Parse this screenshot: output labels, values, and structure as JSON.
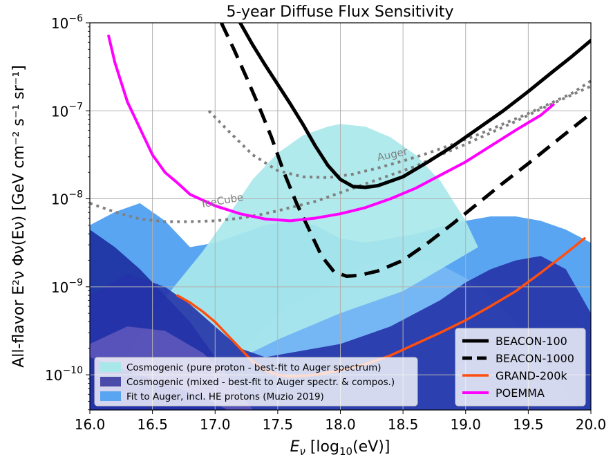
{
  "chart_data": {
    "type": "line",
    "title": "5-year Diffuse Flux Sensitivity",
    "xlabel_main": "E",
    "xlabel_sub": "ν",
    "xlabel_unit": " [log",
    "xlabel_unit_sub": "10",
    "xlabel_unit_end": "(eV)]",
    "ylabel": "All-flavor E²ν Φν(Eν) [GeV cm⁻² s⁻¹ sr⁻¹]",
    "xlim": [
      16.0,
      20.0
    ],
    "ylim_log10": [
      -10.4,
      -6
    ],
    "log_y": true,
    "grid": true,
    "xticks": [
      "16.0",
      "16.5",
      "17.0",
      "17.5",
      "18.0",
      "18.5",
      "19.0",
      "19.5",
      "20.0"
    ],
    "yticks": [
      {
        "base": "10",
        "exp": "−6",
        "log": -6
      },
      {
        "base": "10",
        "exp": "−7",
        "log": -7
      },
      {
        "base": "10",
        "exp": "−8",
        "log": -8
      },
      {
        "base": "10",
        "exp": "−9",
        "log": -9
      },
      {
        "base": "10",
        "exp": "−10",
        "log": -10
      }
    ],
    "bands": [
      {
        "name": "Fit to Auger, incl. HE protons (Muzio 2019)",
        "color": "#5aa5f2",
        "opacity": 1.0,
        "upper": [
          [
            16.0,
            -8.3
          ],
          [
            16.2,
            -8.15
          ],
          [
            16.4,
            -8.05
          ],
          [
            16.6,
            -8.25
          ],
          [
            16.8,
            -8.55
          ],
          [
            17.0,
            -8.5
          ],
          [
            17.2,
            -8.4
          ],
          [
            17.4,
            -8.3
          ],
          [
            17.6,
            -8.25
          ],
          [
            17.8,
            -8.3
          ],
          [
            18.0,
            -8.45
          ],
          [
            18.2,
            -8.5
          ],
          [
            18.4,
            -8.45
          ],
          [
            18.6,
            -8.4
          ],
          [
            18.8,
            -8.32
          ],
          [
            19.0,
            -8.25
          ],
          [
            19.2,
            -8.2
          ],
          [
            19.4,
            -8.2
          ],
          [
            19.6,
            -8.25
          ],
          [
            19.8,
            -8.35
          ],
          [
            20.0,
            -8.5
          ]
        ],
        "lower": [
          [
            16.0,
            -10.4
          ],
          [
            20.0,
            -10.4
          ]
        ]
      },
      {
        "name": "Fit to Auger, incl. HE protons (Muzio 2019) light",
        "color": "#75b6f5",
        "opacity": 1.0,
        "upper": [
          [
            17.0,
            -9.9
          ],
          [
            17.3,
            -9.6
          ],
          [
            17.6,
            -9.2
          ],
          [
            17.9,
            -9.0
          ],
          [
            18.2,
            -8.75
          ],
          [
            18.5,
            -8.65
          ],
          [
            18.8,
            -8.75
          ],
          [
            19.0,
            -8.9
          ],
          [
            19.2,
            -9.1
          ],
          [
            19.4,
            -9.4
          ],
          [
            19.6,
            -9.8
          ],
          [
            19.8,
            -10.2
          ],
          [
            19.9,
            -10.4
          ]
        ],
        "lower": [
          [
            17.0,
            -10.4
          ],
          [
            19.9,
            -10.4
          ]
        ]
      },
      {
        "name": "Cosmogenic (pure proton - best-fit to Auger spectrum)",
        "color": "#a9e8ea",
        "opacity": 0.92,
        "upper": [
          [
            16.3,
            -9.8
          ],
          [
            16.5,
            -9.3
          ],
          [
            16.7,
            -8.95
          ],
          [
            16.9,
            -8.6
          ],
          [
            17.1,
            -8.2
          ],
          [
            17.3,
            -7.78
          ],
          [
            17.5,
            -7.48
          ],
          [
            17.7,
            -7.28
          ],
          [
            17.9,
            -7.18
          ],
          [
            18.0,
            -7.15
          ],
          [
            18.2,
            -7.18
          ],
          [
            18.4,
            -7.3
          ],
          [
            18.6,
            -7.5
          ],
          [
            18.8,
            -7.8
          ],
          [
            19.0,
            -8.25
          ],
          [
            19.1,
            -8.55
          ]
        ],
        "lower": [
          [
            16.3,
            -9.8
          ],
          [
            17.0,
            -9.95
          ],
          [
            17.5,
            -9.6
          ],
          [
            18.0,
            -9.3
          ],
          [
            18.5,
            -9.05
          ],
          [
            19.1,
            -8.55
          ]
        ]
      },
      {
        "name": "Cosmogenic (mixed - best-fit to Auger spectr. & compos.)",
        "color": "#1c2ea0",
        "opacity": 0.9,
        "upper": [
          [
            16.0,
            -8.35
          ],
          [
            16.2,
            -8.55
          ],
          [
            16.4,
            -8.8
          ],
          [
            16.6,
            -9.1
          ],
          [
            16.8,
            -9.4
          ],
          [
            17.0,
            -9.8
          ],
          [
            17.1,
            -10.05
          ],
          [
            17.2,
            -10.3
          ],
          [
            17.3,
            -10.4
          ]
        ],
        "lower": [
          [
            16.0,
            -10.4
          ],
          [
            17.3,
            -10.4
          ]
        ]
      },
      {
        "name": "Cosmogenic (mixed) inner",
        "color": "#2533a8",
        "opacity": 0.9,
        "upper": [
          [
            16.0,
            -9.1
          ],
          [
            16.3,
            -8.85
          ],
          [
            16.6,
            -9.0
          ],
          [
            16.8,
            -9.2
          ],
          [
            17.0,
            -9.45
          ],
          [
            17.2,
            -9.7
          ],
          [
            17.4,
            -9.8
          ],
          [
            17.6,
            -9.75
          ],
          [
            17.8,
            -9.7
          ],
          [
            18.0,
            -9.65
          ],
          [
            18.2,
            -9.55
          ],
          [
            18.4,
            -9.45
          ],
          [
            18.6,
            -9.3
          ],
          [
            18.8,
            -9.15
          ],
          [
            19.0,
            -8.95
          ],
          [
            19.2,
            -8.8
          ],
          [
            19.4,
            -8.7
          ],
          [
            19.6,
            -8.65
          ],
          [
            19.8,
            -8.8
          ],
          [
            20.0,
            -9.3
          ]
        ],
        "lower": [
          [
            16.0,
            -10.4
          ],
          [
            20.0,
            -10.4
          ]
        ]
      },
      {
        "name": "Cosmogenic (mixed) low wedge",
        "color": "#6a5fc0",
        "opacity": 0.75,
        "upper": [
          [
            16.0,
            -9.65
          ],
          [
            16.3,
            -9.45
          ],
          [
            16.6,
            -9.5
          ],
          [
            16.9,
            -9.75
          ],
          [
            17.1,
            -10.0
          ],
          [
            17.3,
            -10.4
          ]
        ],
        "lower": [
          [
            16.0,
            -9.8
          ],
          [
            16.3,
            -9.95
          ],
          [
            16.6,
            -10.1
          ],
          [
            16.9,
            -10.25
          ],
          [
            17.1,
            -10.4
          ]
        ]
      }
    ],
    "series": [
      {
        "name": "Auger",
        "color": "#808080",
        "dash": "dotted",
        "width": 4,
        "points": [
          [
            16.95,
            -7.0
          ],
          [
            17.1,
            -7.22
          ],
          [
            17.3,
            -7.5
          ],
          [
            17.5,
            -7.68
          ],
          [
            17.7,
            -7.75
          ],
          [
            17.9,
            -7.76
          ],
          [
            18.1,
            -7.72
          ],
          [
            18.3,
            -7.65
          ],
          [
            18.5,
            -7.57
          ],
          [
            18.7,
            -7.48
          ],
          [
            18.9,
            -7.38
          ],
          [
            19.1,
            -7.27
          ],
          [
            19.3,
            -7.15
          ],
          [
            19.5,
            -7.03
          ],
          [
            19.7,
            -6.9
          ],
          [
            19.85,
            -6.8
          ],
          [
            20.0,
            -6.66
          ]
        ],
        "annotation": {
          "text": "Auger",
          "x": 18.3,
          "y": -7.57,
          "rot": -12
        }
      },
      {
        "name": "IceCube",
        "color": "#808080",
        "dash": "dotted",
        "width": 4,
        "points": [
          [
            16.0,
            -8.05
          ],
          [
            16.2,
            -8.15
          ],
          [
            16.4,
            -8.23
          ],
          [
            16.6,
            -8.26
          ],
          [
            16.8,
            -8.26
          ],
          [
            17.0,
            -8.25
          ],
          [
            17.2,
            -8.22
          ],
          [
            17.4,
            -8.17
          ],
          [
            17.6,
            -8.1
          ],
          [
            17.8,
            -8.03
          ],
          [
            18.0,
            -7.93
          ],
          [
            18.2,
            -7.83
          ],
          [
            18.4,
            -7.73
          ],
          [
            18.6,
            -7.63
          ],
          [
            18.8,
            -7.5
          ],
          [
            19.0,
            -7.38
          ],
          [
            19.2,
            -7.25
          ],
          [
            19.4,
            -7.12
          ],
          [
            19.6,
            -6.98
          ],
          [
            19.8,
            -6.85
          ],
          [
            20.0,
            -6.72
          ]
        ],
        "annotation": {
          "text": "IceCube",
          "x": 16.9,
          "y": -8.1,
          "rot": -10
        }
      },
      {
        "name": "BEACON-100",
        "color": "#000000",
        "dash": "solid",
        "width": 5,
        "points": [
          [
            17.2,
            -6.0
          ],
          [
            17.3,
            -6.25
          ],
          [
            17.4,
            -6.48
          ],
          [
            17.5,
            -6.7
          ],
          [
            17.6,
            -6.92
          ],
          [
            17.7,
            -7.15
          ],
          [
            17.8,
            -7.4
          ],
          [
            17.9,
            -7.62
          ],
          [
            18.0,
            -7.78
          ],
          [
            18.1,
            -7.86
          ],
          [
            18.2,
            -7.87
          ],
          [
            18.3,
            -7.85
          ],
          [
            18.5,
            -7.75
          ],
          [
            18.7,
            -7.58
          ],
          [
            18.9,
            -7.4
          ],
          [
            19.1,
            -7.2
          ],
          [
            19.3,
            -7.0
          ],
          [
            19.5,
            -6.78
          ],
          [
            19.7,
            -6.55
          ],
          [
            19.85,
            -6.38
          ],
          [
            20.0,
            -6.2
          ]
        ]
      },
      {
        "name": "BEACON-1000",
        "color": "#000000",
        "dash": "dashed",
        "width": 5,
        "points": [
          [
            17.05,
            -6.0
          ],
          [
            17.15,
            -6.3
          ],
          [
            17.25,
            -6.62
          ],
          [
            17.35,
            -6.95
          ],
          [
            17.45,
            -7.3
          ],
          [
            17.55,
            -7.7
          ],
          [
            17.65,
            -8.05
          ],
          [
            17.75,
            -8.35
          ],
          [
            17.85,
            -8.65
          ],
          [
            17.95,
            -8.83
          ],
          [
            18.05,
            -8.88
          ],
          [
            18.15,
            -8.87
          ],
          [
            18.3,
            -8.82
          ],
          [
            18.5,
            -8.7
          ],
          [
            18.7,
            -8.5
          ],
          [
            18.9,
            -8.28
          ],
          [
            19.1,
            -8.05
          ],
          [
            19.3,
            -7.82
          ],
          [
            19.5,
            -7.6
          ],
          [
            19.7,
            -7.37
          ],
          [
            19.85,
            -7.2
          ],
          [
            20.0,
            -7.03
          ]
        ]
      },
      {
        "name": "GRAND-200k",
        "color": "#ff4f10",
        "dash": "solid",
        "width": 3.5,
        "points": [
          [
            16.7,
            -9.1
          ],
          [
            16.8,
            -9.18
          ],
          [
            16.9,
            -9.28
          ],
          [
            17.0,
            -9.4
          ],
          [
            17.1,
            -9.55
          ],
          [
            17.2,
            -9.7
          ],
          [
            17.3,
            -9.85
          ],
          [
            17.4,
            -9.95
          ],
          [
            17.5,
            -10.0
          ],
          [
            17.6,
            -10.02
          ],
          [
            17.8,
            -10.0
          ],
          [
            18.0,
            -9.95
          ],
          [
            18.2,
            -9.88
          ],
          [
            18.4,
            -9.78
          ],
          [
            18.6,
            -9.65
          ],
          [
            18.8,
            -9.52
          ],
          [
            19.0,
            -9.38
          ],
          [
            19.2,
            -9.22
          ],
          [
            19.4,
            -9.05
          ],
          [
            19.6,
            -8.84
          ],
          [
            19.8,
            -8.62
          ],
          [
            19.95,
            -8.45
          ]
        ]
      },
      {
        "name": "POEMMA",
        "color": "#ff00ff",
        "dash": "solid",
        "width": 4,
        "points": [
          [
            16.15,
            -6.15
          ],
          [
            16.2,
            -6.45
          ],
          [
            16.3,
            -6.9
          ],
          [
            16.4,
            -7.2
          ],
          [
            16.5,
            -7.5
          ],
          [
            16.6,
            -7.7
          ],
          [
            16.7,
            -7.82
          ],
          [
            16.8,
            -7.95
          ],
          [
            17.0,
            -8.08
          ],
          [
            17.2,
            -8.17
          ],
          [
            17.4,
            -8.23
          ],
          [
            17.6,
            -8.25
          ],
          [
            17.8,
            -8.22
          ],
          [
            18.0,
            -8.17
          ],
          [
            18.2,
            -8.1
          ],
          [
            18.4,
            -8.0
          ],
          [
            18.6,
            -7.88
          ],
          [
            18.8,
            -7.73
          ],
          [
            19.0,
            -7.58
          ],
          [
            19.2,
            -7.4
          ],
          [
            19.4,
            -7.22
          ],
          [
            19.6,
            -7.05
          ],
          [
            19.7,
            -6.93
          ]
        ]
      }
    ],
    "legend_lines": {
      "placement": "lower-right",
      "entries": [
        {
          "label": "BEACON-100",
          "color": "#000000",
          "dash": "solid",
          "width": 5
        },
        {
          "label": "BEACON-1000",
          "color": "#000000",
          "dash": "dashed",
          "width": 5
        },
        {
          "label": "GRAND-200k",
          "color": "#ff4f10",
          "dash": "solid",
          "width": 3.5
        },
        {
          "label": "POEMMA",
          "color": "#ff00ff",
          "dash": "solid",
          "width": 4
        }
      ]
    },
    "legend_bands": {
      "placement": "lower-left",
      "entries": [
        {
          "label": "Cosmogenic (pure proton - best-fit to Auger spectrum)",
          "color": "#a9e8ea"
        },
        {
          "label": "Cosmogenic (mixed - best-fit to Auger spectr. & compos.)",
          "color": "#4a4aa8"
        },
        {
          "label": "Fit to Auger, incl. HE protons (Muzio 2019)",
          "color": "#5aa5f2"
        }
      ]
    }
  }
}
